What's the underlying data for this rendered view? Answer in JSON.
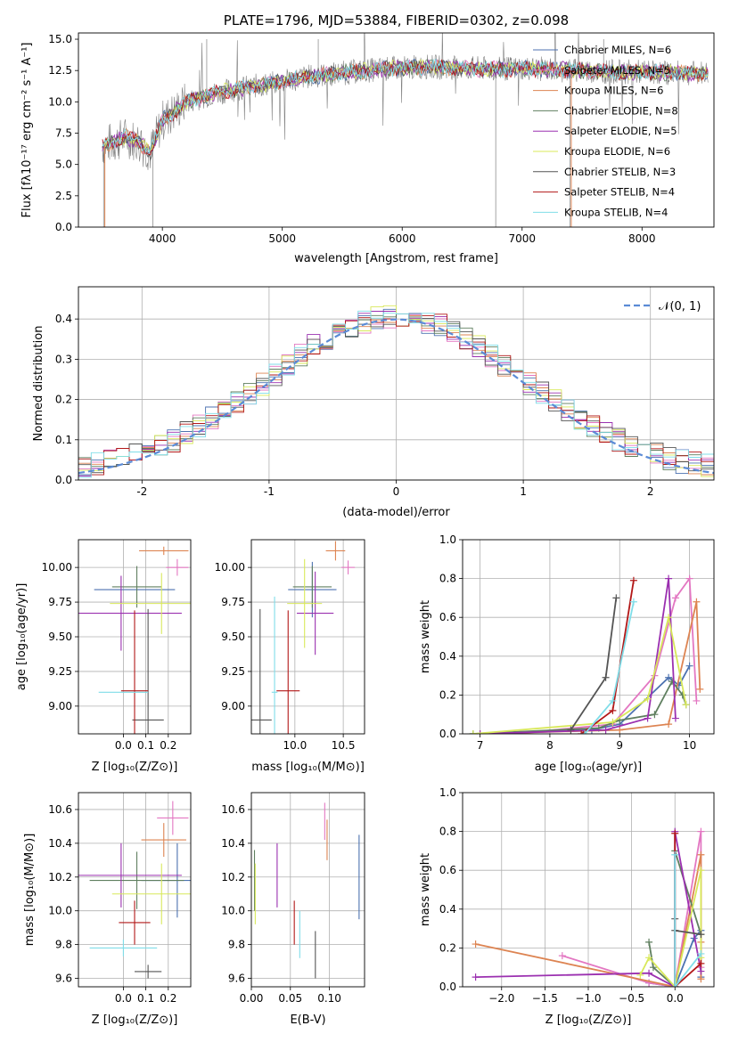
{
  "chart_data": [
    {
      "id": "spectrum",
      "type": "line",
      "title": "PLATE=1796, MJD=53884, FIBERID=0302, z=0.098",
      "xlabel": "wavelength [Angstrom, rest frame]",
      "ylabel": "Flux [fλ10⁻¹⁷ erg cm⁻² s⁻¹ A⁻¹]",
      "xlim": [
        3300,
        8600
      ],
      "ylim": [
        0,
        15.5
      ],
      "xticks": [
        4000,
        5000,
        6000,
        7000,
        8000
      ],
      "yticks": [
        0.0,
        2.5,
        5.0,
        7.5,
        10.0,
        12.5,
        15.0
      ],
      "ytick_labels": [
        "0.0",
        "2.5",
        "5.0",
        "7.5",
        "10.0",
        "12.5",
        "15.0"
      ],
      "legend_position": "right",
      "data_series": {
        "name": "observed spectrum",
        "color": "#808080"
      },
      "series": [
        {
          "name": "Chabrier MILES, N_SSP=6",
          "color": "#4c72b0"
        },
        {
          "name": "Salpeter MILES, N_SSP=5",
          "color": "#e377c2"
        },
        {
          "name": "Kroupa MILES, N_SSP=6",
          "color": "#dd8452"
        },
        {
          "name": "Chabrier ELODIE, N_SSP=8",
          "color": "#5f7f5f"
        },
        {
          "name": "Salpeter ELODIE, N_SSP=5",
          "color": "#9b30b0"
        },
        {
          "name": "Kroupa ELODIE, N_SSP=6",
          "color": "#d8e85a"
        },
        {
          "name": "Chabrier STELIB, N_SSP=3",
          "color": "#555555"
        },
        {
          "name": "Salpeter STELIB, N_SSP=4",
          "color": "#b21818"
        },
        {
          "name": "Kroupa STELIB, N_SSP=4",
          "color": "#7fdde8"
        }
      ],
      "continuum_shape": {
        "x": [
          3500,
          3600,
          3700,
          3800,
          3900,
          4000,
          4100,
          4200,
          4400,
          4600,
          4800,
          5000,
          5200,
          5500,
          5800,
          6000,
          6200,
          6500,
          6800,
          7000,
          7200,
          7500,
          7800,
          8000,
          8300,
          8550
        ],
        "y": [
          6.5,
          6.8,
          7.2,
          6.8,
          6.0,
          8.5,
          9.2,
          10.0,
          10.6,
          11.0,
          11.3,
          11.6,
          12.0,
          12.3,
          12.6,
          12.7,
          12.8,
          12.7,
          12.6,
          12.7,
          12.6,
          12.5,
          12.4,
          12.4,
          12.3,
          12.3
        ]
      }
    },
    {
      "id": "residuals",
      "type": "step",
      "xlabel": "(data-model)/error",
      "ylabel": "Normed distribution",
      "xlim": [
        -2.5,
        2.5
      ],
      "ylim": [
        0,
        0.48
      ],
      "xticks": [
        -2,
        -1,
        0,
        1,
        2
      ],
      "yticks": [
        0.0,
        0.1,
        0.2,
        0.3,
        0.4
      ],
      "ytick_labels": [
        "0.0",
        "0.1",
        "0.2",
        "0.3",
        "0.4"
      ],
      "grid": true,
      "legend": "𝒩(0, 1)",
      "gauss_color": "#5b8bd6",
      "bin_width": 0.1,
      "series_colors": [
        "#4c72b0",
        "#e377c2",
        "#dd8452",
        "#5f7f5f",
        "#9b30b0",
        "#d8e85a",
        "#555555",
        "#b21818",
        "#7fdde8"
      ]
    },
    {
      "id": "age_vs_Z",
      "type": "errorbar",
      "xlabel": "Z [log₁₀(Z/Z⊙)]",
      "ylabel": "age  [log₁₀(age/yr)]",
      "xlim": [
        -0.2,
        0.3
      ],
      "ylim": [
        8.8,
        10.2
      ],
      "xticks": [
        0.0,
        0.1,
        0.2
      ],
      "xtick_labels": [
        "0.0",
        "0.1",
        "0.2"
      ],
      "yticks": [
        9.0,
        9.25,
        9.5,
        9.75,
        10.0
      ],
      "ytick_labels": [
        "9.00",
        "9.25",
        "9.50",
        "9.75",
        "10.00"
      ],
      "points": [
        {
          "x": 0.05,
          "y": 9.84,
          "xerr": 0.18,
          "yerr": 0.0,
          "color": "#4c72b0"
        },
        {
          "x": 0.24,
          "y": 10.0,
          "xerr": 0.05,
          "yerr": 0.06,
          "color": "#e377c2"
        },
        {
          "x": 0.18,
          "y": 10.12,
          "xerr": 0.11,
          "yerr": 0.03,
          "color": "#dd8452"
        },
        {
          "x": 0.06,
          "y": 9.86,
          "xerr": 0.11,
          "yerr": 0.15,
          "color": "#5f7f5f"
        },
        {
          "x": -0.01,
          "y": 9.67,
          "xerr": 0.27,
          "yerr": 0.27,
          "color": "#9b30b0"
        },
        {
          "x": 0.17,
          "y": 9.74,
          "xerr": 0.23,
          "yerr": 0.22,
          "color": "#d8e85a"
        },
        {
          "x": 0.11,
          "y": 8.9,
          "xerr": 0.07,
          "yerr": 0.8,
          "color": "#555555"
        },
        {
          "x": 0.05,
          "y": 9.11,
          "xerr": 0.06,
          "yerr": 0.58,
          "color": "#b21818"
        },
        {
          "x": 0.0,
          "y": 9.1,
          "xerr": 0.11,
          "yerr": 0.0,
          "color": "#7fdde8"
        }
      ]
    },
    {
      "id": "age_vs_mass",
      "type": "errorbar",
      "xlabel": "mass [log₁₀(M/M⊙)]",
      "ylabel": "",
      "xlim": [
        9.55,
        10.72
      ],
      "ylim": [
        8.8,
        10.2
      ],
      "xticks": [
        10.0,
        10.5
      ],
      "xtick_labels": [
        "10.0",
        "10.5"
      ],
      "yticks": [
        9.0,
        9.25,
        9.5,
        9.75,
        10.0
      ],
      "ytick_labels": [
        "9.00",
        "9.25",
        "9.50",
        "9.75",
        "10.00"
      ],
      "points": [
        {
          "x": 10.18,
          "y": 9.84,
          "xerr": 0.25,
          "yerr": 0.2,
          "color": "#4c72b0"
        },
        {
          "x": 10.55,
          "y": 10.0,
          "xerr": 0.07,
          "yerr": 0.05,
          "color": "#e377c2"
        },
        {
          "x": 10.42,
          "y": 10.12,
          "xerr": 0.1,
          "yerr": 0.07,
          "color": "#dd8452"
        },
        {
          "x": 10.18,
          "y": 9.86,
          "xerr": 0.2,
          "yerr": 0.15,
          "color": "#5f7f5f"
        },
        {
          "x": 10.21,
          "y": 9.67,
          "xerr": 0.19,
          "yerr": 0.3,
          "color": "#9b30b0"
        },
        {
          "x": 10.1,
          "y": 9.74,
          "xerr": 0.18,
          "yerr": 0.32,
          "color": "#d8e85a"
        },
        {
          "x": 9.64,
          "y": 8.9,
          "xerr": 0.12,
          "yerr": 0.8,
          "color": "#555555"
        },
        {
          "x": 9.93,
          "y": 9.11,
          "xerr": 0.12,
          "yerr": 0.58,
          "color": "#b21818"
        },
        {
          "x": 9.79,
          "y": 9.1,
          "xerr": 0.03,
          "yerr": 0.69,
          "color": "#7fdde8"
        }
      ]
    },
    {
      "id": "weight_vs_age",
      "type": "line",
      "xlabel": "age  [log₁₀(age/yr)]",
      "ylabel": "mass weight",
      "xlim": [
        6.75,
        10.35
      ],
      "ylim": [
        0,
        1.0
      ],
      "xticks": [
        7,
        8,
        9,
        10
      ],
      "yticks": [
        0.0,
        0.2,
        0.4,
        0.6,
        0.8,
        1.0
      ],
      "ytick_labels": [
        "0.0",
        "0.2",
        "0.4",
        "0.6",
        "0.8",
        "1.0"
      ],
      "grid": true,
      "series": [
        {
          "color": "#4c72b0",
          "x": [
            6.9,
            8.6,
            9.0,
            9.7,
            9.85,
            10.0
          ],
          "y": [
            0.0,
            0.02,
            0.05,
            0.29,
            0.25,
            0.35
          ]
        },
        {
          "color": "#e377c2",
          "x": [
            7.5,
            8.9,
            9.5,
            9.8,
            10.0,
            10.1
          ],
          "y": [
            0.0,
            0.05,
            0.3,
            0.7,
            0.8,
            0.17
          ]
        },
        {
          "color": "#dd8452",
          "x": [
            7.0,
            9.0,
            9.7,
            10.1,
            10.15
          ],
          "y": [
            0.0,
            0.02,
            0.05,
            0.68,
            0.23
          ]
        },
        {
          "color": "#5f7f5f",
          "x": [
            6.9,
            8.7,
            9.0,
            9.5,
            9.75,
            9.9,
            9.95
          ],
          "y": [
            0.0,
            0.03,
            0.07,
            0.1,
            0.27,
            0.2,
            0.15
          ]
        },
        {
          "color": "#9b30b0",
          "x": [
            7.0,
            8.8,
            9.4,
            9.7,
            9.8
          ],
          "y": [
            0.0,
            0.02,
            0.08,
            0.8,
            0.08
          ]
        },
        {
          "color": "#d8e85a",
          "x": [
            6.9,
            8.9,
            9.4,
            9.7,
            9.95
          ],
          "y": [
            0.0,
            0.06,
            0.18,
            0.6,
            0.15
          ]
        },
        {
          "color": "#555555",
          "x": [
            8.3,
            8.8,
            8.95
          ],
          "y": [
            0.02,
            0.29,
            0.7
          ]
        },
        {
          "color": "#b21818",
          "x": [
            8.45,
            8.9,
            9.2
          ],
          "y": [
            0.0,
            0.12,
            0.79
          ]
        },
        {
          "color": "#7fdde8",
          "x": [
            8.5,
            8.9,
            9.2
          ],
          "y": [
            0.0,
            0.17,
            0.68
          ]
        }
      ]
    },
    {
      "id": "mass_vs_Z",
      "type": "errorbar",
      "xlabel": "Z [log₁₀(Z/Z⊙)]",
      "ylabel": "mass [log₁₀(M/M⊙)]",
      "xlim": [
        -0.2,
        0.3
      ],
      "ylim": [
        9.55,
        10.7
      ],
      "xticks": [
        0.0,
        0.1,
        0.2
      ],
      "xtick_labels": [
        "0.0",
        "0.1",
        "0.2"
      ],
      "yticks": [
        9.6,
        9.8,
        10.0,
        10.2,
        10.4,
        10.6
      ],
      "ytick_labels": [
        "9.6",
        "9.8",
        "10.0",
        "10.2",
        "10.4",
        "10.6"
      ],
      "points": [
        {
          "x": 0.24,
          "y": 10.18,
          "xerr": 0.16,
          "yerr": 0.22,
          "color": "#4c72b0"
        },
        {
          "x": 0.22,
          "y": 10.55,
          "xerr": 0.07,
          "yerr": 0.1,
          "color": "#e377c2"
        },
        {
          "x": 0.18,
          "y": 10.42,
          "xerr": 0.1,
          "yerr": 0.1,
          "color": "#dd8452"
        },
        {
          "x": 0.06,
          "y": 10.18,
          "xerr": 0.21,
          "yerr": 0.17,
          "color": "#5f7f5f"
        },
        {
          "x": -0.01,
          "y": 10.21,
          "xerr": 0.27,
          "yerr": 0.19,
          "color": "#9b30b0"
        },
        {
          "x": 0.17,
          "y": 10.1,
          "xerr": 0.22,
          "yerr": 0.18,
          "color": "#d8e85a"
        },
        {
          "x": 0.11,
          "y": 9.64,
          "xerr": 0.06,
          "yerr": 0.04,
          "color": "#555555"
        },
        {
          "x": 0.05,
          "y": 9.93,
          "xerr": 0.07,
          "yerr": 0.13,
          "color": "#b21818"
        },
        {
          "x": 0.0,
          "y": 9.78,
          "xerr": 0.15,
          "yerr": 0.05,
          "color": "#7fdde8"
        }
      ]
    },
    {
      "id": "mass_vs_ebv",
      "type": "errorbar",
      "xlabel": "E(B-V)",
      "ylabel": "",
      "xlim": [
        0.0,
        0.145
      ],
      "ylim": [
        9.55,
        10.7
      ],
      "xticks": [
        0.0,
        0.05,
        0.1
      ],
      "xtick_labels": [
        "0.00",
        "0.05",
        "0.10"
      ],
      "yticks": [
        9.6,
        9.8,
        10.0,
        10.2,
        10.4,
        10.6
      ],
      "ytick_labels": [
        "9.6",
        "9.8",
        "10.0",
        "10.2",
        "10.4",
        "10.6"
      ],
      "points": [
        {
          "x": 0.138,
          "y": 10.2,
          "xerr": 0.0,
          "yerr": 0.25,
          "color": "#4c72b0"
        },
        {
          "x": 0.094,
          "y": 10.53,
          "xerr": 0.0,
          "yerr": 0.11,
          "color": "#e377c2"
        },
        {
          "x": 0.097,
          "y": 10.42,
          "xerr": 0.0,
          "yerr": 0.12,
          "color": "#dd8452"
        },
        {
          "x": 0.004,
          "y": 10.18,
          "xerr": 0.0,
          "yerr": 0.18,
          "color": "#5f7f5f"
        },
        {
          "x": 0.033,
          "y": 10.21,
          "xerr": 0.0,
          "yerr": 0.19,
          "color": "#9b30b0"
        },
        {
          "x": 0.005,
          "y": 10.1,
          "xerr": 0.0,
          "yerr": 0.18,
          "color": "#d8e85a"
        },
        {
          "x": 0.082,
          "y": 9.74,
          "xerr": 0.0,
          "yerr": 0.14,
          "color": "#555555"
        },
        {
          "x": 0.055,
          "y": 9.93,
          "xerr": 0.0,
          "yerr": 0.13,
          "color": "#b21818"
        },
        {
          "x": 0.062,
          "y": 9.86,
          "xerr": 0.0,
          "yerr": 0.14,
          "color": "#7fdde8"
        }
      ]
    },
    {
      "id": "weight_vs_Z",
      "type": "line",
      "xlabel": "Z [log₁₀(Z/Z⊙)]",
      "ylabel": "mass weight",
      "xlim": [
        -2.45,
        0.45
      ],
      "ylim": [
        0,
        1.0
      ],
      "xticks": [
        -2.0,
        -1.5,
        -1.0,
        -0.5,
        0.0
      ],
      "xtick_labels": [
        "−2.0",
        "−1.5",
        "−1.0",
        "−0.5",
        "0.0"
      ],
      "yticks": [
        0.0,
        0.2,
        0.4,
        0.6,
        0.8,
        1.0
      ],
      "ytick_labels": [
        "0.0",
        "0.2",
        "0.4",
        "0.6",
        "0.8",
        "1.0"
      ],
      "grid": true,
      "series": [
        {
          "color": "#4c72b0",
          "x": [
            -0.3,
            0.0,
            0.22,
            0.3,
            0.3
          ],
          "y": [
            0.02,
            0.0,
            0.25,
            0.29,
            0.05
          ]
        },
        {
          "color": "#e377c2",
          "x": [
            -1.3,
            -0.3,
            0.0,
            0.3,
            0.3
          ],
          "y": [
            0.16,
            0.02,
            0.0,
            0.8,
            0.1
          ]
        },
        {
          "color": "#dd8452",
          "x": [
            -2.3,
            0.0,
            0.3,
            0.3,
            0.3
          ],
          "y": [
            0.22,
            0.0,
            0.68,
            0.23,
            0.04
          ]
        },
        {
          "color": "#5f7f5f",
          "x": [
            -0.3,
            -0.25,
            0.0,
            0.0,
            0.3
          ],
          "y": [
            0.23,
            0.1,
            0.0,
            0.7,
            0.27
          ]
        },
        {
          "color": "#9b30b0",
          "x": [
            -2.3,
            -0.3,
            0.0,
            0.0,
            0.3
          ],
          "y": [
            0.05,
            0.07,
            0.0,
            0.8,
            0.08
          ]
        },
        {
          "color": "#d8e85a",
          "x": [
            -0.4,
            -0.3,
            0.0,
            0.3,
            0.3
          ],
          "y": [
            0.06,
            0.15,
            0.0,
            0.6,
            0.15
          ]
        },
        {
          "color": "#555555",
          "x": [
            0.0,
            0.0,
            0.3
          ],
          "y": [
            0.35,
            0.29,
            0.27
          ]
        },
        {
          "color": "#b21818",
          "x": [
            0.0,
            0.0,
            0.3
          ],
          "y": [
            0.79,
            0.0,
            0.12
          ]
        },
        {
          "color": "#7fdde8",
          "x": [
            0.0,
            0.0,
            0.3
          ],
          "y": [
            0.68,
            0.0,
            0.17
          ]
        }
      ]
    }
  ]
}
